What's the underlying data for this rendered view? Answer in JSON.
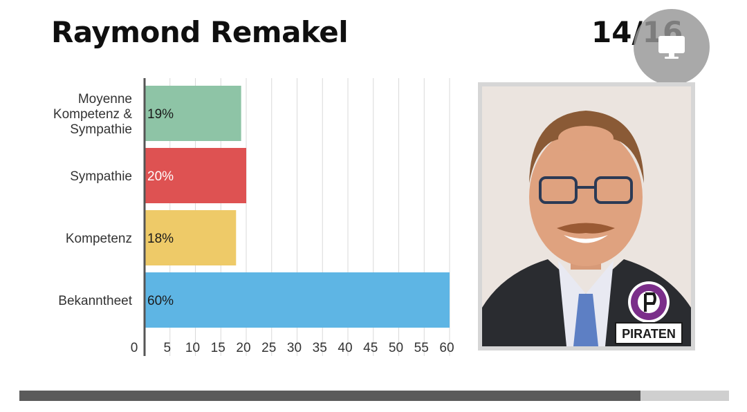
{
  "header": {
    "title": "Raymond Remakel",
    "page_counter": "14/16"
  },
  "colors": {
    "grid": "#d9d9d9",
    "axis": "#555555"
  },
  "chart_data": {
    "type": "bar",
    "orientation": "horizontal",
    "categories": [
      "Moyenne Kompetenz & Sympathie",
      "Sympathie",
      "Kompetenz",
      "Bekanntheet"
    ],
    "category_lines": [
      [
        "Moyenne",
        "Kompetenz &",
        "Sympathie"
      ],
      [
        "Sympathie"
      ],
      [
        "Kompetenz"
      ],
      [
        "Bekanntheet"
      ]
    ],
    "values": [
      19,
      20,
      18,
      60
    ],
    "value_labels": [
      "19%",
      "20%",
      "18%",
      "60%"
    ],
    "colors": [
      "#8ec4a6",
      "#de5252",
      "#eeca68",
      "#5eb5e4"
    ],
    "label_colors": [
      "#1a1a1a",
      "#ffffff",
      "#1a1a1a",
      "#1a1a1a"
    ],
    "xticks": [
      0,
      5,
      10,
      15,
      20,
      25,
      30,
      35,
      40,
      45,
      50,
      55,
      60
    ],
    "xlim": [
      0,
      60
    ],
    "grid": true,
    "title": "",
    "xlabel": "",
    "ylabel": ""
  },
  "photo": {
    "badge_text": "PIRATEN",
    "badge_color": "#7b2e8a"
  },
  "progress": {
    "fraction": 0.875,
    "fill_color": "#5a5a5a",
    "track_color": "#cfcfcf"
  }
}
